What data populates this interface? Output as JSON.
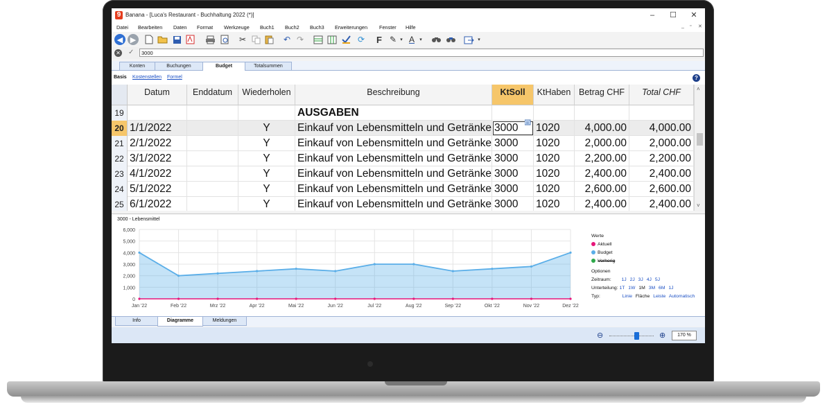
{
  "window": {
    "title": "Banana - [Luca's Restaurant - Buchhaltung 2022 (*)]",
    "logo": "9",
    "minimize": "–",
    "maximize": "☐",
    "close": "✕"
  },
  "menu": [
    "Datei",
    "Bearbeiten",
    "Daten",
    "Format",
    "Werkzeuge",
    "Buch1",
    "Buch2",
    "Buch3",
    "Erweiterungen",
    "Fenster",
    "Hilfe"
  ],
  "mdi_controls": [
    "_",
    "▫",
    "✕"
  ],
  "formula": {
    "value": "3000"
  },
  "tabs": [
    {
      "label": "Konten",
      "active": false
    },
    {
      "label": "Buchungen",
      "active": false
    },
    {
      "label": "Budget",
      "active": true
    },
    {
      "label": "Totalsummen",
      "active": false
    }
  ],
  "subtabs": [
    {
      "label": "Basis",
      "link": false
    },
    {
      "label": "Kostenstellen",
      "link": true
    },
    {
      "label": "Formel",
      "link": true
    }
  ],
  "help_icon": "?",
  "columns": [
    "Datum",
    "Enddatum",
    "Wiederholen",
    "Beschreibung",
    "KtSoll",
    "KtHaben",
    "Betrag CHF",
    "Total CHF"
  ],
  "rows": [
    {
      "n": "19",
      "datum": "",
      "enddatum": "",
      "wiederholen": "",
      "beschreibung": "AUSGABEN",
      "ktsoll": "",
      "kthaben": "",
      "betrag": "",
      "total": ""
    },
    {
      "n": "20",
      "datum": "1/1/2022",
      "enddatum": "",
      "wiederholen": "Y",
      "beschreibung": "Einkauf von Lebensmitteln und Getränken",
      "ktsoll": "3000",
      "kthaben": "1020",
      "betrag": "4,000.00",
      "total": "4,000.00"
    },
    {
      "n": "21",
      "datum": "2/1/2022",
      "enddatum": "",
      "wiederholen": "Y",
      "beschreibung": "Einkauf von Lebensmitteln und Getränken",
      "ktsoll": "3000",
      "kthaben": "1020",
      "betrag": "2,000.00",
      "total": "2,000.00"
    },
    {
      "n": "22",
      "datum": "3/1/2022",
      "enddatum": "",
      "wiederholen": "Y",
      "beschreibung": "Einkauf von Lebensmitteln und Getränken",
      "ktsoll": "3000",
      "kthaben": "1020",
      "betrag": "2,200.00",
      "total": "2,200.00"
    },
    {
      "n": "23",
      "datum": "4/1/2022",
      "enddatum": "",
      "wiederholen": "Y",
      "beschreibung": "Einkauf von Lebensmitteln und Getränken",
      "ktsoll": "3000",
      "kthaben": "1020",
      "betrag": "2,400.00",
      "total": "2,400.00"
    },
    {
      "n": "24",
      "datum": "5/1/2022",
      "enddatum": "",
      "wiederholen": "Y",
      "beschreibung": "Einkauf von Lebensmitteln und Getränken",
      "ktsoll": "3000",
      "kthaben": "1020",
      "betrag": "2,600.00",
      "total": "2,600.00"
    },
    {
      "n": "25",
      "datum": "6/1/2022",
      "enddatum": "",
      "wiederholen": "Y",
      "beschreibung": "Einkauf von Lebensmitteln und Getränken",
      "ktsoll": "3000",
      "kthaben": "1020",
      "betrag": "2,400.00",
      "total": "2,400.00"
    }
  ],
  "chart_data": {
    "type": "area",
    "title": "3000 - Lebensmittel",
    "categories": [
      "Jan '22",
      "Feb '22",
      "Mrz '22",
      "Apr '22",
      "Mai '22",
      "Jun '22",
      "Jul '22",
      "Aug '22",
      "Sep '22",
      "Okt '22",
      "Nov '22",
      "Dez '22"
    ],
    "ylim": [
      0,
      6000
    ],
    "yticks": [
      "0",
      "1,000",
      "2,000",
      "3,000",
      "4,000",
      "5,000",
      "6,000"
    ],
    "series": [
      {
        "name": "Budget",
        "color": "#5aaee8",
        "values": [
          4000,
          2000,
          2200,
          2400,
          2600,
          2400,
          3000,
          3000,
          2400,
          2600,
          2800,
          4000
        ]
      },
      {
        "name": "Aktuell",
        "color": "#e6167a",
        "values": [
          0,
          0,
          0,
          0,
          0,
          0,
          0,
          0,
          0,
          0,
          0,
          0
        ]
      }
    ],
    "grid": true
  },
  "legend": {
    "werte_label": "Werte",
    "items": [
      {
        "label": "Aktuell",
        "color": "#e6167a"
      },
      {
        "label": "Budget",
        "color": "#5aaee8"
      },
      {
        "label": "Vorherig",
        "color": "#2ea84a"
      }
    ],
    "optionen_label": "Optionen",
    "zeitraum_label": "Zeitraum:",
    "zeitraum": [
      "1J",
      "2J",
      "3J",
      "4J",
      "5J"
    ],
    "unterteilung_label": "Unterteilung:",
    "unterteilung": [
      "1T",
      "1W",
      "1M",
      "3M",
      "6M",
      "1J"
    ],
    "typ_label": "Typ:",
    "typ": [
      "Linie",
      "Fläche",
      "Leiste",
      "Automatisch"
    ]
  },
  "bottom_tabs": [
    {
      "label": "Info",
      "active": false
    },
    {
      "label": "Diagramme",
      "active": true
    },
    {
      "label": "Meldungen",
      "active": false
    }
  ],
  "zoom": {
    "value": "170 %",
    "level_percent": 170
  }
}
